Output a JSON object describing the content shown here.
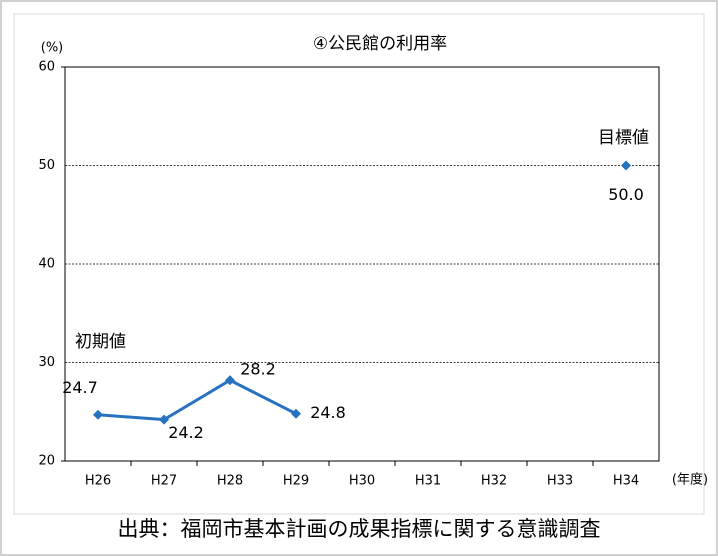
{
  "chart_data": {
    "type": "line",
    "title": "④公民館の利用率",
    "y_label": "(%)",
    "x_label": "(年度)",
    "categories": [
      "H26",
      "H27",
      "H28",
      "H29",
      "H30",
      "H31",
      "H32",
      "H33",
      "H34"
    ],
    "series": [
      {
        "color": "#2672c0",
        "values": [
          24.7,
          24.2,
          28.2,
          24.8,
          null,
          null,
          null,
          null,
          50.0
        ],
        "value_labels": [
          "24.7",
          "24.2",
          "28.2",
          "24.8",
          null,
          null,
          null,
          null,
          "50.0"
        ]
      }
    ],
    "ylim": [
      20,
      60
    ],
    "yticks": [
      20,
      30,
      40,
      50,
      60
    ],
    "grid": true,
    "annotations": [
      "初期値",
      "目標値"
    ],
    "source": "出典：福岡市基本計画の成果指標に関する意識調査"
  }
}
